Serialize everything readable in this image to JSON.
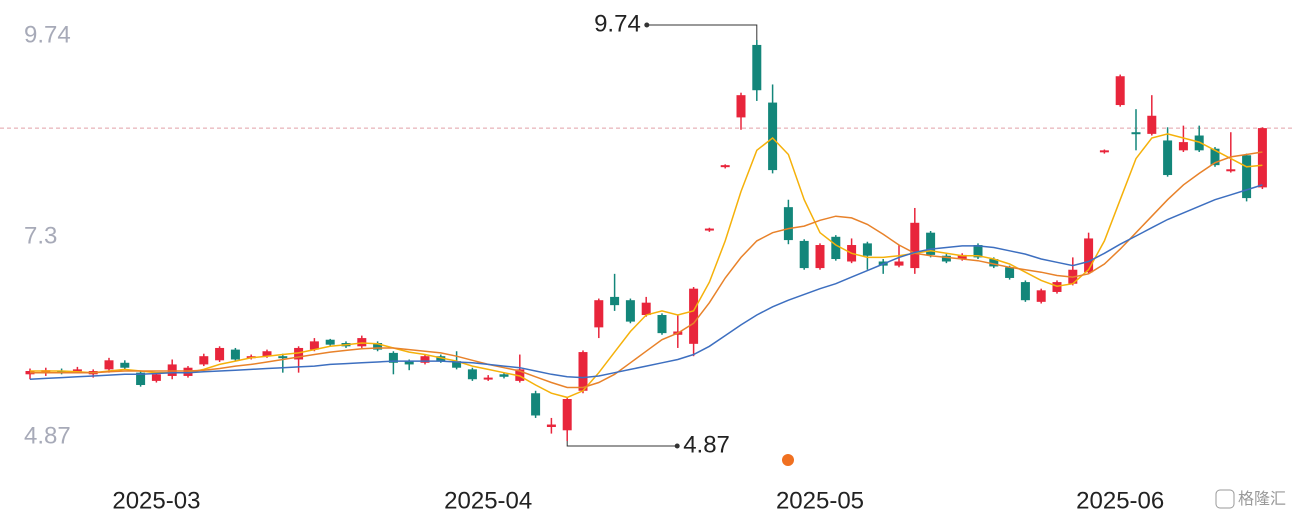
{
  "chart_data": {
    "type": "candlestick",
    "categories": [
      null,
      null,
      null,
      null,
      null,
      null,
      null,
      null,
      "2025-03",
      null,
      null,
      null,
      null,
      null,
      null,
      null,
      null,
      null,
      null,
      null,
      null,
      null,
      null,
      null,
      null,
      null,
      null,
      null,
      null,
      "2025-04",
      null,
      null,
      null,
      null,
      null,
      null,
      null,
      null,
      null,
      null,
      null,
      null,
      null,
      null,
      null,
      null,
      null,
      null,
      null,
      null,
      "2025-05",
      null,
      null,
      null,
      null,
      null,
      null,
      null,
      null,
      null,
      null,
      null,
      null,
      null,
      null,
      null,
      null,
      null,
      null,
      "2025-06",
      null,
      null,
      null,
      null,
      null,
      null,
      null,
      null,
      null
    ],
    "open": [
      5.68,
      5.7,
      5.72,
      5.72,
      5.68,
      5.74,
      5.82,
      5.7,
      5.6,
      5.66,
      5.66,
      5.8,
      5.85,
      5.98,
      5.88,
      5.9,
      5.9,
      5.86,
      5.98,
      6.1,
      6.06,
      6.02,
      6.06,
      5.94,
      5.84,
      5.82,
      5.9,
      5.84,
      5.74,
      5.62,
      5.68,
      5.6,
      5.45,
      5.04,
      5.0,
      5.48,
      6.25,
      6.62,
      6.58,
      6.4,
      6.4,
      6.16,
      6.05,
      7.43,
      8.2,
      8.8,
      9.68,
      8.98,
      7.71,
      7.3,
      6.97,
      7.35,
      7.05,
      7.27,
      7.05,
      7.0,
      6.97,
      7.4,
      7.12,
      7.08,
      7.25,
      7.08,
      6.98,
      6.8,
      6.56,
      6.68,
      6.78,
      6.92,
      8.38,
      8.95,
      8.62,
      8.6,
      8.52,
      8.4,
      8.58,
      8.42,
      8.15,
      8.34,
      7.95
    ],
    "high": [
      5.75,
      5.76,
      5.75,
      5.77,
      5.74,
      5.88,
      5.85,
      5.72,
      5.7,
      5.86,
      5.78,
      5.93,
      6.02,
      6.0,
      5.92,
      5.98,
      5.93,
      6.02,
      6.12,
      6.11,
      6.08,
      6.15,
      6.08,
      5.96,
      5.86,
      5.92,
      5.92,
      5.96,
      5.76,
      5.67,
      5.7,
      5.92,
      5.48,
      5.15,
      5.4,
      5.97,
      6.6,
      6.9,
      6.6,
      6.62,
      6.42,
      6.4,
      6.74,
      7.46,
      8.23,
      9.1,
      9.74,
      9.2,
      7.8,
      7.32,
      7.27,
      7.37,
      7.33,
      7.29,
      7.08,
      7.25,
      7.7,
      7.42,
      7.14,
      7.15,
      7.27,
      7.1,
      7.0,
      6.82,
      6.72,
      6.82,
      7.1,
      7.4,
      8.41,
      9.32,
      8.9,
      9.07,
      8.68,
      8.7,
      8.7,
      8.44,
      8.62,
      8.36,
      8.68
    ],
    "low": [
      5.62,
      5.66,
      5.68,
      5.7,
      5.64,
      5.7,
      5.74,
      5.53,
      5.58,
      5.62,
      5.64,
      5.78,
      5.83,
      5.84,
      5.86,
      5.88,
      5.7,
      5.7,
      5.96,
      6.02,
      6.0,
      6.0,
      5.96,
      5.68,
      5.73,
      5.8,
      5.82,
      5.74,
      5.6,
      5.6,
      5.63,
      5.58,
      5.15,
      4.96,
      4.87,
      5.45,
      6.12,
      6.45,
      6.3,
      6.38,
      6.16,
      6.0,
      5.9,
      7.41,
      8.18,
      8.65,
      9.0,
      8.12,
      7.26,
      6.95,
      6.95,
      7.06,
      7.03,
      6.95,
      6.9,
      6.98,
      6.9,
      7.1,
      7.03,
      7.06,
      7.08,
      6.97,
      6.83,
      6.56,
      6.54,
      6.66,
      6.76,
      6.9,
      8.36,
      8.93,
      8.4,
      8.58,
      8.08,
      8.38,
      8.38,
      8.2,
      8.13,
      7.78,
      7.93
    ],
    "close": [
      5.72,
      5.73,
      5.7,
      5.74,
      5.72,
      5.85,
      5.76,
      5.55,
      5.68,
      5.8,
      5.76,
      5.9,
      6.0,
      5.86,
      5.9,
      5.96,
      5.88,
      6.0,
      6.08,
      6.04,
      6.02,
      6.12,
      5.98,
      5.82,
      5.8,
      5.9,
      5.84,
      5.76,
      5.62,
      5.64,
      5.65,
      5.74,
      5.18,
      5.07,
      5.38,
      5.95,
      6.58,
      6.52,
      6.32,
      6.55,
      6.18,
      6.2,
      6.72,
      7.45,
      8.22,
      9.07,
      9.13,
      8.16,
      7.31,
      6.97,
      7.25,
      7.08,
      7.25,
      7.12,
      7.0,
      7.05,
      7.52,
      7.13,
      7.05,
      7.13,
      7.1,
      6.99,
      6.85,
      6.58,
      6.7,
      6.8,
      6.95,
      7.33,
      8.4,
      9.3,
      8.6,
      8.82,
      8.1,
      8.5,
      8.4,
      8.22,
      8.17,
      7.82,
      8.67
    ],
    "up_color": "#e8253b",
    "down_color": "#13867a",
    "lines": [
      {
        "color": "#f5b10a",
        "values": [
          5.72,
          5.72,
          5.72,
          5.71,
          5.7,
          5.72,
          5.74,
          5.72,
          5.7,
          5.7,
          5.7,
          5.74,
          5.8,
          5.84,
          5.88,
          5.9,
          5.92,
          5.94,
          5.98,
          6.02,
          6.04,
          6.06,
          6.05,
          6.0,
          5.95,
          5.92,
          5.88,
          5.84,
          5.78,
          5.74,
          5.7,
          5.66,
          5.55,
          5.45,
          5.4,
          5.48,
          5.7,
          5.95,
          6.2,
          6.4,
          6.45,
          6.4,
          6.45,
          6.8,
          7.3,
          7.9,
          8.4,
          8.55,
          8.35,
          7.8,
          7.4,
          7.25,
          7.15,
          7.1,
          7.1,
          7.12,
          7.15,
          7.18,
          7.15,
          7.12,
          7.12,
          7.08,
          7.02,
          6.92,
          6.82,
          6.75,
          6.78,
          6.95,
          7.3,
          7.8,
          8.3,
          8.55,
          8.6,
          8.55,
          8.5,
          8.4,
          8.3,
          8.2,
          8.22
        ]
      },
      {
        "color": "#e8822a",
        "values": [
          5.7,
          5.7,
          5.7,
          5.7,
          5.7,
          5.71,
          5.72,
          5.72,
          5.72,
          5.72,
          5.72,
          5.73,
          5.75,
          5.78,
          5.8,
          5.83,
          5.86,
          5.89,
          5.92,
          5.95,
          5.97,
          5.99,
          6.0,
          6.0,
          5.98,
          5.96,
          5.94,
          5.9,
          5.85,
          5.8,
          5.76,
          5.72,
          5.65,
          5.58,
          5.52,
          5.52,
          5.58,
          5.68,
          5.82,
          5.96,
          6.1,
          6.18,
          6.3,
          6.55,
          6.85,
          7.1,
          7.3,
          7.4,
          7.45,
          7.48,
          7.55,
          7.6,
          7.58,
          7.5,
          7.38,
          7.25,
          7.15,
          7.12,
          7.1,
          7.08,
          7.06,
          7.02,
          6.98,
          6.95,
          6.92,
          6.88,
          6.86,
          6.9,
          7.02,
          7.2,
          7.4,
          7.6,
          7.8,
          7.98,
          8.12,
          8.25,
          8.32,
          8.35,
          8.38
        ]
      },
      {
        "color": "#3d6fc0",
        "values": [
          5.62,
          5.63,
          5.64,
          5.65,
          5.66,
          5.67,
          5.68,
          5.68,
          5.69,
          5.7,
          5.7,
          5.71,
          5.72,
          5.73,
          5.74,
          5.75,
          5.76,
          5.77,
          5.78,
          5.8,
          5.81,
          5.82,
          5.83,
          5.84,
          5.84,
          5.84,
          5.84,
          5.83,
          5.82,
          5.8,
          5.78,
          5.76,
          5.72,
          5.68,
          5.65,
          5.64,
          5.66,
          5.7,
          5.74,
          5.78,
          5.82,
          5.86,
          5.92,
          6.02,
          6.15,
          6.28,
          6.4,
          6.5,
          6.58,
          6.65,
          6.72,
          6.78,
          6.86,
          6.94,
          7.02,
          7.1,
          7.16,
          7.2,
          7.22,
          7.24,
          7.24,
          7.22,
          7.18,
          7.14,
          7.08,
          7.04,
          7.0,
          7.05,
          7.15,
          7.26,
          7.36,
          7.46,
          7.56,
          7.64,
          7.72,
          7.8,
          7.86,
          7.92,
          7.98
        ]
      }
    ],
    "reference_line": 8.67,
    "ylim": [
      4.87,
      9.74
    ],
    "yticks": [
      4.87,
      7.3,
      9.74
    ],
    "annotations": [
      {
        "label": "9.74",
        "value": 9.74
      },
      {
        "label": "4.87",
        "value": 4.87
      }
    ],
    "watermark": "格隆汇"
  }
}
